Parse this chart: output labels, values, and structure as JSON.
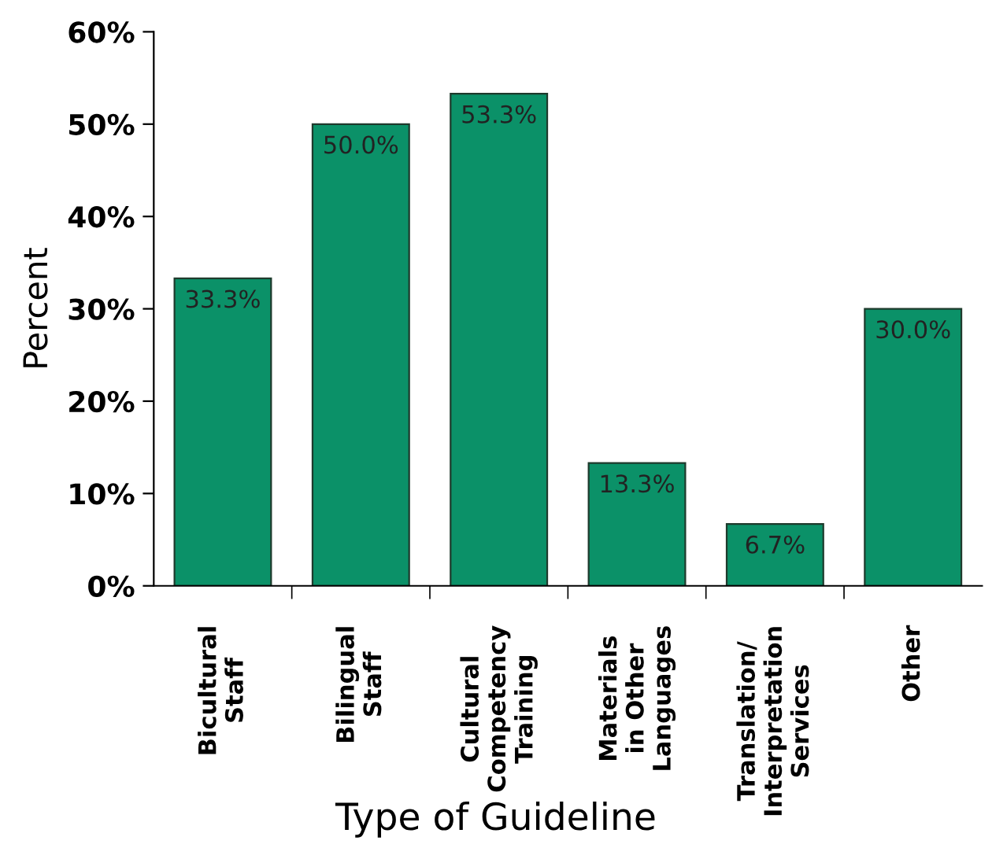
{
  "chart_data": {
    "type": "bar",
    "xlabel": "Type of Guideline",
    "ylabel": "Percent",
    "categories": [
      "Bicultural\nStaff",
      "Bilingual\nStaff",
      "Cultural\nCompetency\nTraining",
      "Materials\nin Other\nLanguages",
      "Translation/\nInterpretation\nServices",
      "Other"
    ],
    "values": [
      33.3,
      50.0,
      53.3,
      13.3,
      6.7,
      30.0
    ],
    "value_labels": [
      "33.3%",
      "50.0%",
      "53.3%",
      "13.3%",
      "6.7%",
      "30.0%"
    ],
    "color": "#0b9168",
    "ylim": [
      0,
      60
    ],
    "yticks": [
      {
        "value": 0,
        "label": "0%"
      },
      {
        "value": 10,
        "label": "10%"
      },
      {
        "value": 20,
        "label": "20%"
      },
      {
        "value": 30,
        "label": "30%"
      },
      {
        "value": 40,
        "label": "40%"
      },
      {
        "value": 50,
        "label": "50%"
      },
      {
        "value": 60,
        "label": "60%"
      }
    ],
    "grid": false,
    "legend": false
  }
}
